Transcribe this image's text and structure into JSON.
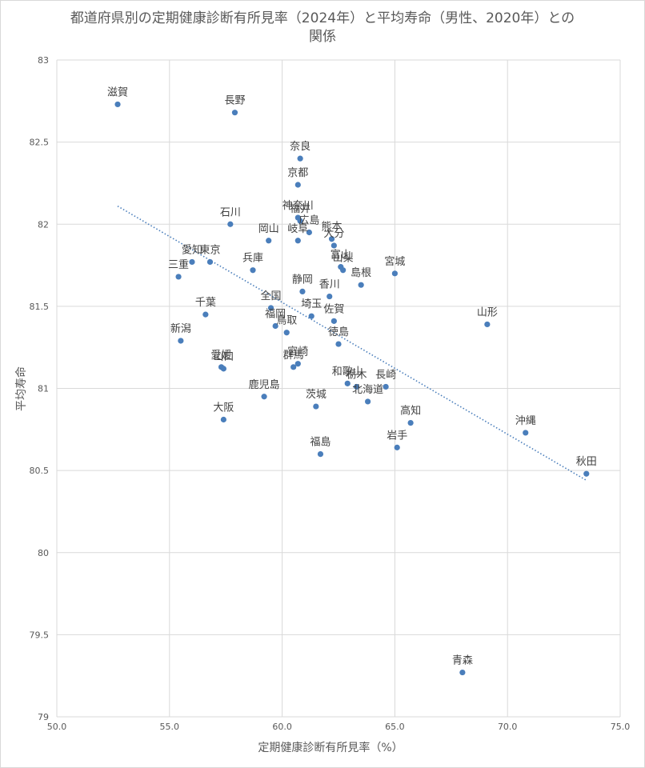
{
  "chart_data": {
    "type": "scatter",
    "title_line1": "都道府県別の定期健康診断有所見率（2024年）と平均寿命（男性、2020年）との",
    "title_line2": "関係",
    "xlabel": "定期健康診断有所見率（%）",
    "ylabel": "平均寿命",
    "xlim": [
      50,
      75
    ],
    "ylim": [
      79,
      83
    ],
    "x_ticks": [
      "50.0",
      "55.0",
      "60.0",
      "65.0",
      "70.0",
      "75.0"
    ],
    "y_ticks": [
      "79",
      "79.5",
      "80",
      "80.5",
      "81",
      "81.5",
      "82",
      "82.5",
      "83"
    ],
    "grid": true,
    "legend": "none",
    "marker_color": "#4a7ebb",
    "trendline": {
      "style": "dotted",
      "color": "#4a7ebb",
      "x": [
        52.7,
        73.5
      ],
      "y": [
        82.11,
        80.44
      ]
    },
    "points": [
      {
        "label": "滋賀",
        "x": 52.7,
        "y": 82.73
      },
      {
        "label": "長野",
        "x": 57.9,
        "y": 82.68
      },
      {
        "label": "奈良",
        "x": 60.8,
        "y": 82.4
      },
      {
        "label": "京都",
        "x": 60.7,
        "y": 82.24
      },
      {
        "label": "神奈川",
        "x": 60.7,
        "y": 82.04
      },
      {
        "label": "福井",
        "x": 60.8,
        "y": 82.02
      },
      {
        "label": "広島",
        "x": 61.2,
        "y": 81.95
      },
      {
        "label": "石川",
        "x": 57.7,
        "y": 82.0
      },
      {
        "label": "岡山",
        "x": 59.4,
        "y": 81.9
      },
      {
        "label": "岐阜",
        "x": 60.7,
        "y": 81.9
      },
      {
        "label": "熊本",
        "x": 62.2,
        "y": 81.91
      },
      {
        "label": "大分",
        "x": 62.3,
        "y": 81.87
      },
      {
        "label": "富山",
        "x": 62.6,
        "y": 81.74
      },
      {
        "label": "山梨",
        "x": 62.7,
        "y": 81.72
      },
      {
        "label": "島根",
        "x": 63.5,
        "y": 81.63
      },
      {
        "label": "宮城",
        "x": 65.0,
        "y": 81.7
      },
      {
        "label": "愛知",
        "x": 56.0,
        "y": 81.77
      },
      {
        "label": "東京",
        "x": 56.8,
        "y": 81.77
      },
      {
        "label": "三重",
        "x": 55.4,
        "y": 81.68
      },
      {
        "label": "兵庫",
        "x": 58.7,
        "y": 81.72
      },
      {
        "label": "静岡",
        "x": 60.9,
        "y": 81.59
      },
      {
        "label": "香川",
        "x": 62.1,
        "y": 81.56
      },
      {
        "label": "全国",
        "x": 59.5,
        "y": 81.49
      },
      {
        "label": "千葉",
        "x": 56.6,
        "y": 81.45
      },
      {
        "label": "福岡",
        "x": 59.7,
        "y": 81.38
      },
      {
        "label": "鳥取",
        "x": 60.2,
        "y": 81.34
      },
      {
        "label": "埼玉",
        "x": 61.3,
        "y": 81.44
      },
      {
        "label": "佐賀",
        "x": 62.3,
        "y": 81.41
      },
      {
        "label": "山形",
        "x": 69.1,
        "y": 81.39
      },
      {
        "label": "新潟",
        "x": 55.5,
        "y": 81.29
      },
      {
        "label": "徳島",
        "x": 62.5,
        "y": 81.27
      },
      {
        "label": "愛媛",
        "x": 57.3,
        "y": 81.13
      },
      {
        "label": "山口",
        "x": 57.4,
        "y": 81.12
      },
      {
        "label": "群馬",
        "x": 60.5,
        "y": 81.13
      },
      {
        "label": "宮崎",
        "x": 60.7,
        "y": 81.15
      },
      {
        "label": "和歌山",
        "x": 62.9,
        "y": 81.03
      },
      {
        "label": "栃木",
        "x": 63.3,
        "y": 81.01
      },
      {
        "label": "長崎",
        "x": 64.6,
        "y": 81.01
      },
      {
        "label": "北海道",
        "x": 63.8,
        "y": 80.92
      },
      {
        "label": "鹿児島",
        "x": 59.2,
        "y": 80.95
      },
      {
        "label": "茨城",
        "x": 61.5,
        "y": 80.89
      },
      {
        "label": "大阪",
        "x": 57.4,
        "y": 80.81
      },
      {
        "label": "高知",
        "x": 65.7,
        "y": 80.79
      },
      {
        "label": "沖縄",
        "x": 70.8,
        "y": 80.73
      },
      {
        "label": "岩手",
        "x": 65.1,
        "y": 80.64
      },
      {
        "label": "福島",
        "x": 61.7,
        "y": 80.6
      },
      {
        "label": "秋田",
        "x": 73.5,
        "y": 80.48
      },
      {
        "label": "青森",
        "x": 68.0,
        "y": 79.27
      }
    ]
  }
}
